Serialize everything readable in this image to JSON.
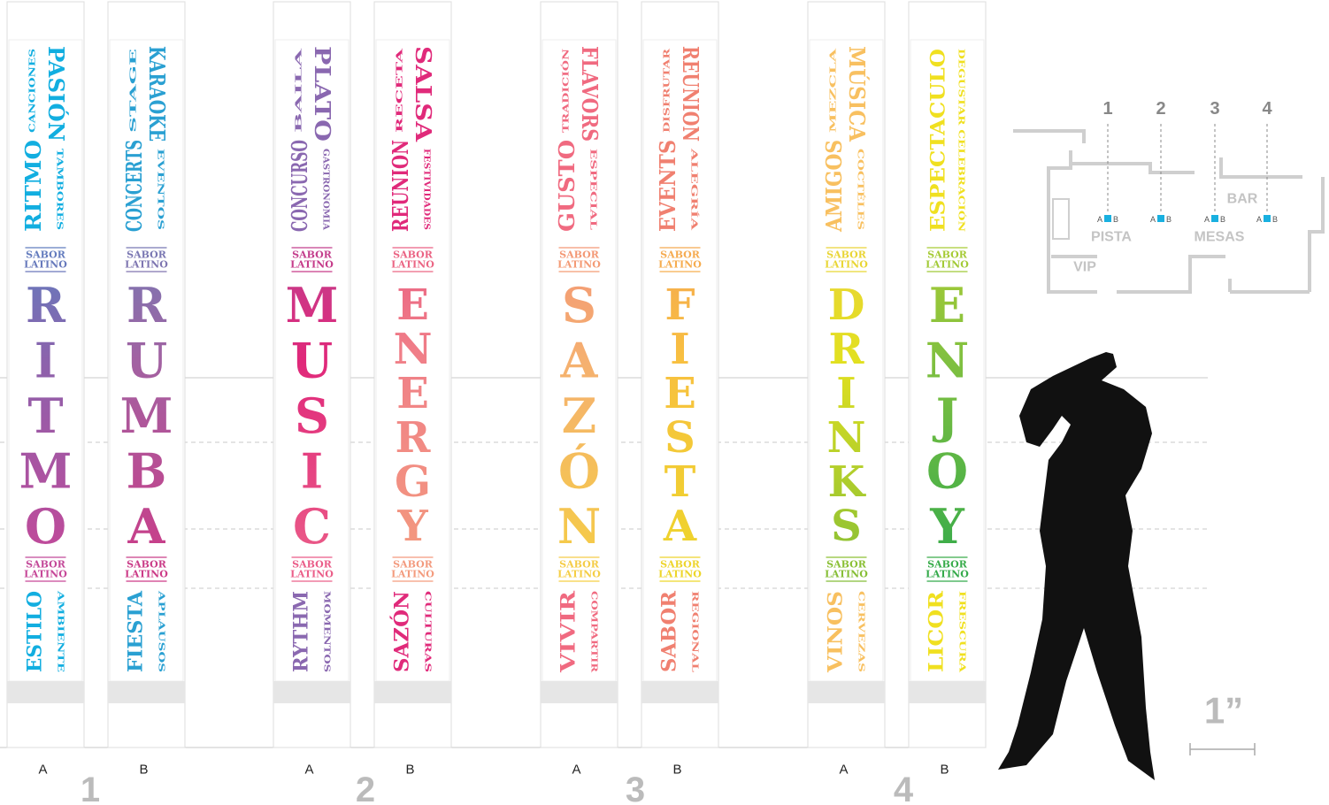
{
  "banners": [
    {
      "label": "A",
      "top": [
        "CANCIONES",
        "RITMO",
        "PASIÓN",
        "TAMBORES"
      ],
      "word": [
        "R",
        "I",
        "T",
        "M",
        "O"
      ],
      "bottom": [
        "ESTILO",
        "AMBIENTE"
      ]
    },
    {
      "label": "B",
      "top": [
        "STAGE",
        "CONCERTS",
        "KARAOKE",
        "EVENTOS"
      ],
      "word": [
        "R",
        "U",
        "M",
        "B",
        "A"
      ],
      "bottom": [
        "FIESTA",
        "APLAUSOS"
      ]
    },
    {
      "label": "A",
      "top": [
        "BAILA",
        "CONCURSO",
        "PLATO",
        "GASTRONOMIA"
      ],
      "word": [
        "M",
        "U",
        "S",
        "I",
        "C"
      ],
      "bottom": [
        "RYTHM",
        "MOMENTOS"
      ]
    },
    {
      "label": "B",
      "top": [
        "RECETA",
        "REUNION",
        "SALSA",
        "FESTIVIDADES"
      ],
      "word": [
        "E",
        "N",
        "E",
        "R",
        "G",
        "Y"
      ],
      "bottom": [
        "SAZÓN",
        "CULTURAS"
      ]
    },
    {
      "label": "A",
      "top": [
        "TRADICIÓN",
        "GUSTO",
        "FLAVORS",
        "ESPECIAL"
      ],
      "word": [
        "S",
        "A",
        "Z",
        "Ó",
        "N"
      ],
      "bottom": [
        "VIVIR",
        "COMPARTIR"
      ]
    },
    {
      "label": "B",
      "top": [
        "DISFRUTAR",
        "EVENTS",
        "REUNION",
        "ALEGRÍA"
      ],
      "word": [
        "F",
        "I",
        "E",
        "S",
        "T",
        "A"
      ],
      "bottom": [
        "SABOR",
        "REGIONAL"
      ]
    },
    {
      "label": "A",
      "top": [
        "MEZCLA",
        "AMIGOS",
        "MÚSICA",
        "COCTÉLES"
      ],
      "word": [
        "D",
        "R",
        "I",
        "N",
        "K",
        "S"
      ],
      "bottom": [
        "VINOS",
        "CERVEZAS"
      ]
    },
    {
      "label": "B",
      "top": [
        "ESPECTACULO",
        "DEGUSTAR CELEBRACIÓN"
      ],
      "word": [
        "E",
        "N",
        "J",
        "O",
        "Y"
      ],
      "bottom": [
        "LICOR",
        "FRESCURA"
      ]
    }
  ],
  "logo": [
    "SABOR",
    "LATINO"
  ],
  "groups": [
    "1",
    "2",
    "3",
    "4"
  ],
  "map": {
    "columns": [
      "1",
      "2",
      "3",
      "4"
    ],
    "seat": [
      "A",
      "B"
    ],
    "areas": [
      "BAR",
      "PISTA",
      "MESAS",
      "VIP"
    ]
  },
  "scale": "1”"
}
